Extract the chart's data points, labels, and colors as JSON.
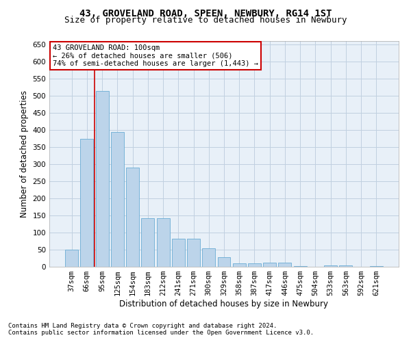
{
  "title": "43, GROVELAND ROAD, SPEEN, NEWBURY, RG14 1ST",
  "subtitle": "Size of property relative to detached houses in Newbury",
  "xlabel": "Distribution of detached houses by size in Newbury",
  "ylabel": "Number of detached properties",
  "categories": [
    "37sqm",
    "66sqm",
    "95sqm",
    "125sqm",
    "154sqm",
    "183sqm",
    "212sqm",
    "241sqm",
    "271sqm",
    "300sqm",
    "329sqm",
    "358sqm",
    "387sqm",
    "417sqm",
    "446sqm",
    "475sqm",
    "504sqm",
    "533sqm",
    "563sqm",
    "592sqm",
    "621sqm"
  ],
  "values": [
    50,
    375,
    515,
    395,
    290,
    142,
    142,
    83,
    83,
    55,
    28,
    10,
    10,
    12,
    12,
    3,
    0,
    5,
    5,
    0,
    3
  ],
  "bar_color": "#bcd4ea",
  "bar_edge_color": "#6aacd4",
  "vline_x": 1.5,
  "vline_color": "#cc0000",
  "annotation_line1": "43 GROVELAND ROAD: 100sqm",
  "annotation_line2": "← 26% of detached houses are smaller (506)",
  "annotation_line3": "74% of semi-detached houses are larger (1,443) →",
  "annotation_box_color": "#ffffff",
  "annotation_box_edge_color": "#cc0000",
  "ylim": [
    0,
    660
  ],
  "yticks": [
    0,
    50,
    100,
    150,
    200,
    250,
    300,
    350,
    400,
    450,
    500,
    550,
    600,
    650
  ],
  "footer_line1": "Contains HM Land Registry data © Crown copyright and database right 2024.",
  "footer_line2": "Contains public sector information licensed under the Open Government Licence v3.0.",
  "background_color": "#ffffff",
  "plot_bg_color": "#e8f0f8",
  "grid_color": "#c0d0e0",
  "title_fontsize": 10,
  "subtitle_fontsize": 9,
  "axis_label_fontsize": 8.5,
  "tick_fontsize": 7.5,
  "annotation_fontsize": 7.5,
  "footer_fontsize": 6.5
}
